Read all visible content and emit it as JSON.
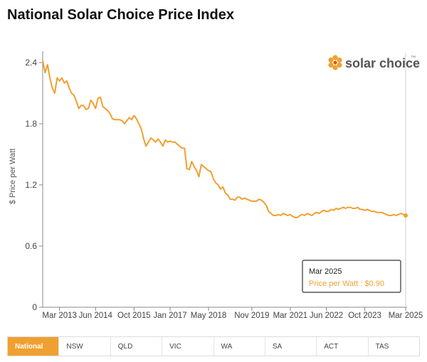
{
  "page": {
    "title": "National Solar Choice Price Index"
  },
  "logo": {
    "text": "solar choice",
    "trademark": "™",
    "colors": {
      "primary": "#f0a030",
      "text": "#555555"
    }
  },
  "tabs": [
    {
      "label": "National",
      "active": true
    },
    {
      "label": "NSW",
      "active": false
    },
    {
      "label": "QLD",
      "active": false
    },
    {
      "label": "VIC",
      "active": false
    },
    {
      "label": "WA",
      "active": false
    },
    {
      "label": "SA",
      "active": false
    },
    {
      "label": "ACT",
      "active": false
    },
    {
      "label": "TAS",
      "active": false
    }
  ],
  "tooltip": {
    "date": "Mar 2025",
    "text": "Price per Watt : $0.90"
  },
  "chart_data": {
    "type": "line",
    "title": "National Solar Choice Price Index",
    "ylabel": "$ Price per Watt",
    "xlabel": "",
    "ylim": [
      0,
      2.4
    ],
    "yticks": [
      0,
      0.6,
      1.2,
      1.8,
      2.4
    ],
    "xlim": [
      "2012-08",
      "2025-03"
    ],
    "xticks": [
      {
        "date": "2013-03",
        "label": "Mar 2013"
      },
      {
        "date": "2014-06",
        "label": "Jun 2014"
      },
      {
        "date": "2015-10",
        "label": "Oct 2015"
      },
      {
        "date": "2017-01",
        "label": "Jan 2017"
      },
      {
        "date": "2018-05",
        "label": "May 2018"
      },
      {
        "date": "2019-11",
        "label": "Nov 2019"
      },
      {
        "date": "2021-03",
        "label": "Mar 2021"
      },
      {
        "date": "2022-06",
        "label": "Jun 2022"
      },
      {
        "date": "2023-10",
        "label": "Oct 2023"
      },
      {
        "date": "2025-03",
        "label": "Mar 2025"
      }
    ],
    "grid": false,
    "color": "#f0a030",
    "series": [
      {
        "name": "Price per Watt",
        "points": [
          [
            "2012-08",
            2.42
          ],
          [
            "2012-09",
            2.3
          ],
          [
            "2012-10",
            2.38
          ],
          [
            "2012-11",
            2.25
          ],
          [
            "2012-12",
            2.15
          ],
          [
            "2013-01",
            2.1
          ],
          [
            "2013-02",
            2.25
          ],
          [
            "2013-03",
            2.22
          ],
          [
            "2013-04",
            2.25
          ],
          [
            "2013-05",
            2.2
          ],
          [
            "2013-06",
            2.22
          ],
          [
            "2013-07",
            2.15
          ],
          [
            "2013-08",
            2.1
          ],
          [
            "2013-09",
            2.08
          ],
          [
            "2013-10",
            2.02
          ],
          [
            "2013-11",
            1.95
          ],
          [
            "2013-12",
            1.98
          ],
          [
            "2014-01",
            1.98
          ],
          [
            "2014-02",
            1.94
          ],
          [
            "2014-03",
            1.95
          ],
          [
            "2014-04",
            2.03
          ],
          [
            "2014-05",
            2.0
          ],
          [
            "2014-06",
            1.95
          ],
          [
            "2014-07",
            2.05
          ],
          [
            "2014-08",
            2.06
          ],
          [
            "2014-09",
            1.97
          ],
          [
            "2014-10",
            1.95
          ],
          [
            "2014-11",
            1.93
          ],
          [
            "2014-12",
            1.9
          ],
          [
            "2015-01",
            1.85
          ],
          [
            "2015-02",
            1.84
          ],
          [
            "2015-03",
            1.84
          ],
          [
            "2015-04",
            1.84
          ],
          [
            "2015-05",
            1.83
          ],
          [
            "2015-06",
            1.8
          ],
          [
            "2015-07",
            1.83
          ],
          [
            "2015-08",
            1.86
          ],
          [
            "2015-09",
            1.84
          ],
          [
            "2015-10",
            1.88
          ],
          [
            "2015-11",
            1.85
          ],
          [
            "2015-12",
            1.8
          ],
          [
            "2016-01",
            1.75
          ],
          [
            "2016-02",
            1.65
          ],
          [
            "2016-03",
            1.58
          ],
          [
            "2016-04",
            1.62
          ],
          [
            "2016-05",
            1.66
          ],
          [
            "2016-06",
            1.64
          ],
          [
            "2016-07",
            1.62
          ],
          [
            "2016-08",
            1.65
          ],
          [
            "2016-09",
            1.62
          ],
          [
            "2016-10",
            1.58
          ],
          [
            "2016-11",
            1.64
          ],
          [
            "2016-12",
            1.62
          ],
          [
            "2017-01",
            1.63
          ],
          [
            "2017-02",
            1.62
          ],
          [
            "2017-03",
            1.62
          ],
          [
            "2017-04",
            1.6
          ],
          [
            "2017-05",
            1.58
          ],
          [
            "2017-06",
            1.56
          ],
          [
            "2017-07",
            1.56
          ],
          [
            "2017-08",
            1.36
          ],
          [
            "2017-09",
            1.35
          ],
          [
            "2017-10",
            1.43
          ],
          [
            "2017-11",
            1.38
          ],
          [
            "2017-12",
            1.34
          ],
          [
            "2018-01",
            1.28
          ],
          [
            "2018-02",
            1.4
          ],
          [
            "2018-03",
            1.38
          ],
          [
            "2018-04",
            1.36
          ],
          [
            "2018-05",
            1.34
          ],
          [
            "2018-06",
            1.33
          ],
          [
            "2018-07",
            1.26
          ],
          [
            "2018-08",
            1.22
          ],
          [
            "2018-09",
            1.2
          ],
          [
            "2018-10",
            1.16
          ],
          [
            "2018-11",
            1.18
          ],
          [
            "2018-12",
            1.12
          ],
          [
            "2019-01",
            1.1
          ],
          [
            "2019-02",
            1.06
          ],
          [
            "2019-03",
            1.06
          ],
          [
            "2019-04",
            1.05
          ],
          [
            "2019-05",
            1.08
          ],
          [
            "2019-06",
            1.08
          ],
          [
            "2019-07",
            1.06
          ],
          [
            "2019-08",
            1.07
          ],
          [
            "2019-09",
            1.06
          ],
          [
            "2019-10",
            1.05
          ],
          [
            "2019-11",
            1.04
          ],
          [
            "2019-12",
            1.04
          ],
          [
            "2020-01",
            1.04
          ],
          [
            "2020-02",
            1.06
          ],
          [
            "2020-03",
            1.05
          ],
          [
            "2020-04",
            1.03
          ],
          [
            "2020-05",
            1.0
          ],
          [
            "2020-06",
            0.94
          ],
          [
            "2020-07",
            0.92
          ],
          [
            "2020-08",
            0.9
          ],
          [
            "2020-09",
            0.9
          ],
          [
            "2020-10",
            0.91
          ],
          [
            "2020-11",
            0.9
          ],
          [
            "2020-12",
            0.92
          ],
          [
            "2021-01",
            0.91
          ],
          [
            "2021-02",
            0.9
          ],
          [
            "2021-03",
            0.91
          ],
          [
            "2021-04",
            0.89
          ],
          [
            "2021-05",
            0.88
          ],
          [
            "2021-06",
            0.88
          ],
          [
            "2021-07",
            0.9
          ],
          [
            "2021-08",
            0.91
          ],
          [
            "2021-09",
            0.9
          ],
          [
            "2021-10",
            0.92
          ],
          [
            "2021-11",
            0.91
          ],
          [
            "2021-12",
            0.9
          ],
          [
            "2022-01",
            0.92
          ],
          [
            "2022-02",
            0.93
          ],
          [
            "2022-03",
            0.92
          ],
          [
            "2022-04",
            0.94
          ],
          [
            "2022-05",
            0.95
          ],
          [
            "2022-06",
            0.94
          ],
          [
            "2022-07",
            0.94
          ],
          [
            "2022-08",
            0.96
          ],
          [
            "2022-09",
            0.95
          ],
          [
            "2022-10",
            0.97
          ],
          [
            "2022-11",
            0.96
          ],
          [
            "2022-12",
            0.97
          ],
          [
            "2023-01",
            0.98
          ],
          [
            "2023-02",
            0.97
          ],
          [
            "2023-03",
            0.98
          ],
          [
            "2023-04",
            0.98
          ],
          [
            "2023-05",
            0.97
          ],
          [
            "2023-06",
            0.97
          ],
          [
            "2023-07",
            0.98
          ],
          [
            "2023-08",
            0.96
          ],
          [
            "2023-09",
            0.96
          ],
          [
            "2023-10",
            0.95
          ],
          [
            "2023-11",
            0.96
          ],
          [
            "2023-12",
            0.95
          ],
          [
            "2024-01",
            0.94
          ],
          [
            "2024-02",
            0.94
          ],
          [
            "2024-03",
            0.93
          ],
          [
            "2024-04",
            0.93
          ],
          [
            "2024-05",
            0.93
          ],
          [
            "2024-06",
            0.92
          ],
          [
            "2024-07",
            0.91
          ],
          [
            "2024-08",
            0.9
          ],
          [
            "2024-09",
            0.9
          ],
          [
            "2024-10",
            0.91
          ],
          [
            "2024-11",
            0.9
          ],
          [
            "2024-12",
            0.91
          ],
          [
            "2025-01",
            0.92
          ],
          [
            "2025-02",
            0.91
          ],
          [
            "2025-03",
            0.9
          ]
        ]
      }
    ],
    "highlight": {
      "date": "2025-03",
      "value": 0.9
    }
  }
}
